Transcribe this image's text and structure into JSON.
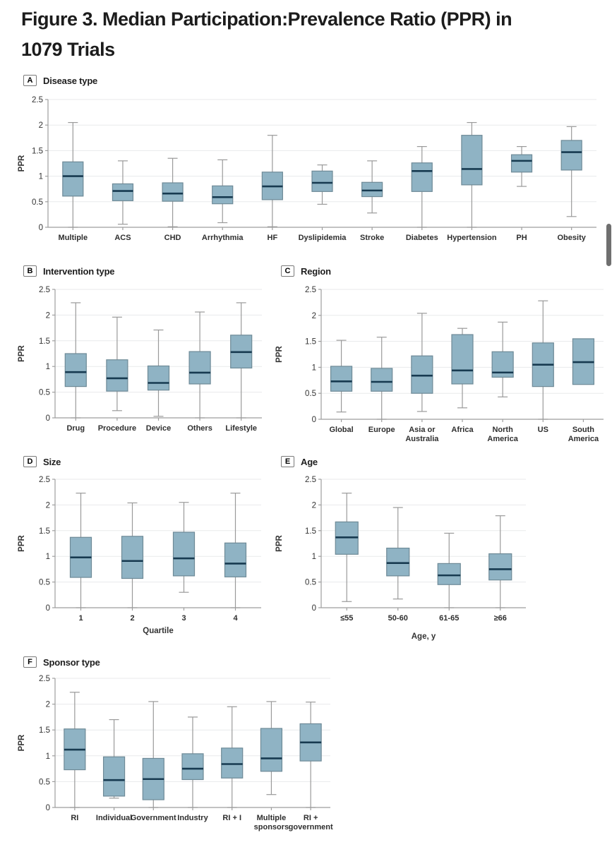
{
  "page": {
    "title_line1": "Figure 3.  Median Participation:Prevalence Ratio (PPR) in",
    "title_line2": "1079 Trials"
  },
  "colors": {
    "box_fill": "#8FB3C4",
    "box_stroke": "#6E8A97",
    "median": "#173A50",
    "whisker": "#9A9A9A",
    "grid": "#E8EAEB",
    "axis": "#9E9E9E",
    "tick_text": "#333333",
    "scrollbar": "#6F6F6F"
  },
  "chart_data": [
    {
      "panel": "A",
      "title": "Disease type",
      "type": "box",
      "ylabel": "PPR",
      "xlabel": "",
      "ylim": [
        0,
        2.5
      ],
      "yticks": [
        0,
        0.5,
        1,
        1.5,
        2,
        2.5
      ],
      "grid": true,
      "categories": [
        "Multiple",
        "ACS",
        "CHD",
        "Arrhythmia",
        "HF",
        "Dyslipidemia",
        "Stroke",
        "Diabetes",
        "Hypertension",
        "PH",
        "Obesity"
      ],
      "boxes": [
        {
          "low": 0,
          "q1": 0.61,
          "median": 1.0,
          "q3": 1.28,
          "high": 2.05
        },
        {
          "low": 0.06,
          "q1": 0.52,
          "median": 0.71,
          "q3": 0.85,
          "high": 1.3
        },
        {
          "low": 0.01,
          "q1": 0.51,
          "median": 0.66,
          "q3": 0.87,
          "high": 1.35
        },
        {
          "low": 0.09,
          "q1": 0.46,
          "median": 0.59,
          "q3": 0.81,
          "high": 1.32
        },
        {
          "low": 0.01,
          "q1": 0.54,
          "median": 0.8,
          "q3": 1.08,
          "high": 1.8
        },
        {
          "low": 0.45,
          "q1": 0.7,
          "median": 0.87,
          "q3": 1.1,
          "high": 1.22
        },
        {
          "low": 0.28,
          "q1": 0.6,
          "median": 0.72,
          "q3": 0.88,
          "high": 1.3
        },
        {
          "low": 0,
          "q1": 0.7,
          "median": 1.1,
          "q3": 1.26,
          "high": 1.58
        },
        {
          "low": 0,
          "q1": 0.83,
          "median": 1.14,
          "q3": 1.8,
          "high": 2.05
        },
        {
          "low": 0.8,
          "q1": 1.08,
          "median": 1.3,
          "q3": 1.42,
          "high": 1.58
        },
        {
          "low": 0.21,
          "q1": 1.12,
          "median": 1.47,
          "q3": 1.7,
          "high": 1.97
        }
      ]
    },
    {
      "panel": "B",
      "title": "Intervention type",
      "type": "box",
      "ylabel": "PPR",
      "xlabel": "",
      "ylim": [
        0,
        2.5
      ],
      "yticks": [
        0,
        0.5,
        1,
        1.5,
        2,
        2.5
      ],
      "grid": true,
      "categories": [
        "Drug",
        "Procedure",
        "Device",
        "Others",
        "Lifestyle"
      ],
      "boxes": [
        {
          "low": 0,
          "q1": 0.61,
          "median": 0.89,
          "q3": 1.25,
          "high": 2.24
        },
        {
          "low": 0.14,
          "q1": 0.52,
          "median": 0.77,
          "q3": 1.13,
          "high": 1.96
        },
        {
          "low": 0.03,
          "q1": 0.54,
          "median": 0.68,
          "q3": 1.01,
          "high": 1.71
        },
        {
          "low": 0,
          "q1": 0.66,
          "median": 0.88,
          "q3": 1.29,
          "high": 2.06
        },
        {
          "low": 0,
          "q1": 0.97,
          "median": 1.28,
          "q3": 1.61,
          "high": 2.24
        }
      ]
    },
    {
      "panel": "C",
      "title": "Region",
      "type": "box",
      "ylabel": "PPR",
      "xlabel": "",
      "ylim": [
        0,
        2.5
      ],
      "yticks": [
        0,
        0.5,
        1,
        1.5,
        2,
        2.5
      ],
      "grid": true,
      "categories": [
        "Global",
        "Europe",
        "Asia or\nAustralia",
        "Africa",
        "North\nAmerica",
        "US",
        "South\nAmerica"
      ],
      "boxes": [
        {
          "low": 0.14,
          "q1": 0.54,
          "median": 0.73,
          "q3": 1.02,
          "high": 1.52
        },
        {
          "low": 0,
          "q1": 0.54,
          "median": 0.72,
          "q3": 0.98,
          "high": 1.58
        },
        {
          "low": 0.15,
          "q1": 0.5,
          "median": 0.84,
          "q3": 1.22,
          "high": 2.04
        },
        {
          "low": 0.22,
          "q1": 0.68,
          "median": 0.94,
          "q3": 1.63,
          "high": 1.75
        },
        {
          "low": 0.43,
          "q1": 0.81,
          "median": 0.9,
          "q3": 1.3,
          "high": 1.87
        },
        {
          "low": 0,
          "q1": 0.63,
          "median": 1.05,
          "q3": 1.47,
          "high": 2.28
        },
        {
          "low": null,
          "q1": 0.67,
          "median": 1.1,
          "q3": 1.55,
          "high": null
        }
      ]
    },
    {
      "panel": "D",
      "title": "Size",
      "type": "box",
      "ylabel": "PPR",
      "xlabel": "Quartile",
      "ylim": [
        0,
        2.5
      ],
      "yticks": [
        0,
        0.5,
        1,
        1.5,
        2,
        2.5
      ],
      "grid": true,
      "categories": [
        "1",
        "2",
        "3",
        "4"
      ],
      "boxes": [
        {
          "low": 0,
          "q1": 0.59,
          "median": 0.98,
          "q3": 1.37,
          "high": 2.23
        },
        {
          "low": 0,
          "q1": 0.57,
          "median": 0.91,
          "q3": 1.39,
          "high": 2.04
        },
        {
          "low": 0.3,
          "q1": 0.62,
          "median": 0.96,
          "q3": 1.47,
          "high": 2.05
        },
        {
          "low": 0,
          "q1": 0.6,
          "median": 0.86,
          "q3": 1.26,
          "high": 2.23
        }
      ]
    },
    {
      "panel": "E",
      "title": "Age",
      "type": "box",
      "ylabel": "PPR",
      "xlabel": "Age, y",
      "ylim": [
        0,
        2.5
      ],
      "yticks": [
        0,
        0.5,
        1,
        1.5,
        2,
        2.5
      ],
      "grid": true,
      "categories": [
        "≤55",
        "50-60",
        "61-65",
        "≥66"
      ],
      "boxes": [
        {
          "low": 0.12,
          "q1": 1.04,
          "median": 1.37,
          "q3": 1.67,
          "high": 2.23
        },
        {
          "low": 0.17,
          "q1": 0.62,
          "median": 0.87,
          "q3": 1.16,
          "high": 1.95
        },
        {
          "low": 0,
          "q1": 0.45,
          "median": 0.63,
          "q3": 0.86,
          "high": 1.45
        },
        {
          "low": 0,
          "q1": 0.54,
          "median": 0.75,
          "q3": 1.05,
          "high": 1.79
        }
      ]
    },
    {
      "panel": "F",
      "title": "Sponsor type",
      "type": "box",
      "ylabel": "PPR",
      "xlabel": "",
      "ylim": [
        0,
        2.5
      ],
      "yticks": [
        0,
        0.5,
        1,
        1.5,
        2,
        2.5
      ],
      "grid": true,
      "categories": [
        "RI",
        "Individual",
        "Government",
        "Industry",
        "RI + I",
        "Multiple\nsponsors",
        "RI +\ngovernment"
      ],
      "boxes": [
        {
          "low": 0,
          "q1": 0.73,
          "median": 1.12,
          "q3": 1.52,
          "high": 2.23
        },
        {
          "low": 0.18,
          "q1": 0.22,
          "median": 0.53,
          "q3": 0.98,
          "high": 1.7
        },
        {
          "low": 0,
          "q1": 0.15,
          "median": 0.55,
          "q3": 0.95,
          "high": 2.05
        },
        {
          "low": 0,
          "q1": 0.54,
          "median": 0.75,
          "q3": 1.04,
          "high": 1.75
        },
        {
          "low": 0,
          "q1": 0.57,
          "median": 0.84,
          "q3": 1.15,
          "high": 1.95
        },
        {
          "low": 0.25,
          "q1": 0.7,
          "median": 0.95,
          "q3": 1.53,
          "high": 2.05
        },
        {
          "low": 0,
          "q1": 0.9,
          "median": 1.26,
          "q3": 1.62,
          "high": 2.04
        }
      ]
    }
  ]
}
